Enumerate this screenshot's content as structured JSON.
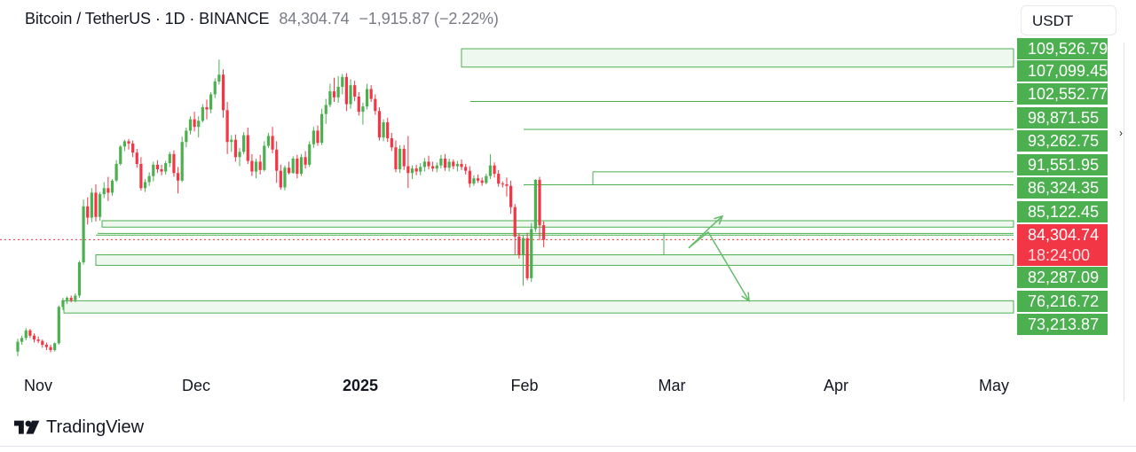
{
  "header": {
    "symbol": "Bitcoin / TetherUS · 1D · BINANCE",
    "last": "84,304.74",
    "change": "−1,915.87 (−2.22%)"
  },
  "currency_button": "USDT",
  "brand": "TradingView",
  "colors": {
    "up": "#4caf50",
    "down": "#f23645",
    "zone_fill": "#e8f5e9",
    "zone_stroke": "#4caf50",
    "arrow": "#66bb6a",
    "current_line": "#f23645"
  },
  "price_labels": {
    "p109526": "109,526.79",
    "p107099": "107,099.45",
    "p102552": "102,552.77",
    "p98871": "98,871.55",
    "p93262": "93,262.75",
    "p91551": "91,551.95",
    "p86324": "86,324.35",
    "p85122": "85,122.45",
    "current": "84,304.74",
    "countdown": "18:24:00",
    "p82287": "82,287.09",
    "p76216": "76,216.72",
    "p73213": "73,213.87"
  },
  "time_axis": {
    "nov": "Nov",
    "dec": "Dec",
    "y2025": "2025",
    "feb": "Feb",
    "mar": "Mar",
    "apr": "Apr",
    "may": "May"
  },
  "chart_data": {
    "type": "candlestick",
    "symbol": "Bitcoin / TetherUS",
    "interval": "1D",
    "exchange": "BINANCE",
    "x_labels": [
      "Nov",
      "Dec",
      "2025",
      "Feb",
      "Mar",
      "Apr",
      "May"
    ],
    "ylim": [
      70000,
      112000
    ],
    "current_price": 84304.74,
    "candles_ohlc": [
      [
        69500,
        71200,
        68900,
        70800
      ],
      [
        70800,
        71600,
        70400,
        71300
      ],
      [
        71300,
        72600,
        71000,
        72300
      ],
      [
        72300,
        72500,
        71300,
        71600
      ],
      [
        71600,
        71900,
        70700,
        71100
      ],
      [
        71100,
        71500,
        70600,
        70900
      ],
      [
        70900,
        71100,
        70000,
        70400
      ],
      [
        70400,
        70700,
        69700,
        70100
      ],
      [
        70100,
        70400,
        69400,
        69700
      ],
      [
        69700,
        70700,
        69500,
        70600
      ],
      [
        70600,
        75600,
        70400,
        75400
      ],
      [
        75400,
        76600,
        75000,
        76300
      ],
      [
        76300,
        76800,
        75800,
        76600
      ],
      [
        76600,
        76900,
        76000,
        76300
      ],
      [
        76300,
        77200,
        76000,
        76900
      ],
      [
        76900,
        81500,
        76600,
        81300
      ],
      [
        81300,
        89600,
        81000,
        88700
      ],
      [
        88700,
        89900,
        86300,
        87200
      ],
      [
        87200,
        91100,
        86600,
        90500
      ],
      [
        90500,
        91600,
        86700,
        87300
      ],
      [
        87300,
        90600,
        86800,
        90300
      ],
      [
        90300,
        91900,
        89800,
        91100
      ],
      [
        91100,
        92600,
        89400,
        90500
      ],
      [
        90500,
        92300,
        90100,
        92100
      ],
      [
        92100,
        94800,
        91900,
        94300
      ],
      [
        94300,
        96800,
        94100,
        96600
      ],
      [
        96600,
        97500,
        96000,
        97300
      ],
      [
        97300,
        97600,
        96200,
        97000
      ],
      [
        97000,
        97400,
        95200,
        95800
      ],
      [
        95800,
        96300,
        93800,
        94300
      ],
      [
        94300,
        95200,
        90800,
        91100
      ],
      [
        91100,
        92300,
        90600,
        91900
      ],
      [
        91900,
        93200,
        91400,
        92700
      ],
      [
        92700,
        94600,
        92000,
        94200
      ],
      [
        94200,
        94800,
        93100,
        93600
      ],
      [
        93600,
        94200,
        92800,
        93300
      ],
      [
        93300,
        94700,
        92900,
        94400
      ],
      [
        94400,
        95900,
        93900,
        95600
      ],
      [
        95600,
        96100,
        92600,
        93100
      ],
      [
        93100,
        93900,
        90400,
        92100
      ],
      [
        92100,
        97900,
        91900,
        97200
      ],
      [
        97200,
        99100,
        96500,
        98700
      ],
      [
        98700,
        100600,
        98200,
        100200
      ],
      [
        100200,
        101200,
        98600,
        99200
      ],
      [
        99200,
        100600,
        97800,
        100000
      ],
      [
        100000,
        102200,
        99800,
        101800
      ],
      [
        101800,
        102800,
        100200,
        101500
      ],
      [
        101500,
        103800,
        101000,
        103500
      ],
      [
        103500,
        105600,
        103000,
        105200
      ],
      [
        105200,
        108100,
        104800,
        106100
      ],
      [
        106100,
        106800,
        100400,
        101400
      ],
      [
        101400,
        102500,
        95600,
        97200
      ],
      [
        97200,
        98100,
        95900,
        97500
      ],
      [
        97500,
        98200,
        94600,
        95200
      ],
      [
        95200,
        96400,
        94000,
        95900
      ],
      [
        95900,
        98500,
        95600,
        98100
      ],
      [
        98100,
        99100,
        94300,
        94700
      ],
      [
        94700,
        95600,
        92700,
        93300
      ],
      [
        93300,
        95000,
        92400,
        94600
      ],
      [
        94600,
        95500,
        92900,
        93500
      ],
      [
        93500,
        97300,
        93300,
        96700
      ],
      [
        96700,
        98400,
        96400,
        98000
      ],
      [
        98000,
        99200,
        95700,
        96200
      ],
      [
        96200,
        97300,
        91800,
        93400
      ],
      [
        93400,
        94200,
        90900,
        91200
      ],
      [
        91200,
        94100,
        90800,
        93800
      ],
      [
        93800,
        94600,
        92900,
        93100
      ],
      [
        93100,
        95300,
        93000,
        95000
      ],
      [
        95000,
        95500,
        92400,
        93000
      ],
      [
        93000,
        95600,
        92700,
        95200
      ],
      [
        95200,
        96000,
        93700,
        94200
      ],
      [
        94200,
        97300,
        93900,
        96900
      ],
      [
        96900,
        99200,
        96400,
        98700
      ],
      [
        98700,
        99400,
        96700,
        97100
      ],
      [
        97100,
        101600,
        96800,
        100900
      ],
      [
        100900,
        102900,
        99600,
        102100
      ],
      [
        102100,
        104900,
        101800,
        103900
      ],
      [
        103900,
        105700,
        102500,
        103100
      ],
      [
        103100,
        105900,
        102400,
        104500
      ],
      [
        104500,
        106200,
        103500,
        105800
      ],
      [
        105800,
        106300,
        101300,
        102200
      ],
      [
        102200,
        105500,
        101600,
        104700
      ],
      [
        104700,
        105300,
        102600,
        103200
      ],
      [
        103200,
        103800,
        100700,
        101200
      ],
      [
        101200,
        102400,
        99500,
        101900
      ],
      [
        101900,
        104900,
        101500,
        104200
      ],
      [
        104200,
        104700,
        102500,
        102900
      ],
      [
        102900,
        103500,
        100800,
        101300
      ],
      [
        101300,
        101800,
        97400,
        97800
      ],
      [
        97800,
        100200,
        97300,
        99800
      ],
      [
        99800,
        100400,
        97200,
        97700
      ],
      [
        97700,
        98400,
        96000,
        96500
      ],
      [
        96500,
        97400,
        93200,
        93600
      ],
      [
        93600,
        96800,
        93100,
        96300
      ],
      [
        96300,
        96800,
        93500,
        94000
      ],
      [
        94000,
        98000,
        91100,
        93100
      ],
      [
        93100,
        94100,
        92300,
        93700
      ],
      [
        93700,
        94200,
        92800,
        93300
      ],
      [
        93300,
        94400,
        92800,
        93900
      ],
      [
        93900,
        95100,
        93300,
        94600
      ],
      [
        94600,
        95400,
        93600,
        94000
      ],
      [
        94000,
        94600,
        93300,
        93700
      ],
      [
        93700,
        94500,
        93200,
        94100
      ],
      [
        94100,
        95500,
        93700,
        95000
      ],
      [
        95000,
        95600,
        93400,
        93800
      ],
      [
        93800,
        95000,
        93300,
        94600
      ],
      [
        94600,
        94900,
        93600,
        94000
      ],
      [
        94000,
        94700,
        93300,
        94300
      ],
      [
        94300,
        94900,
        93500,
        93900
      ],
      [
        93900,
        94300,
        92900,
        93400
      ],
      [
        93400,
        94000,
        91200,
        91700
      ],
      [
        91700,
        92800,
        91400,
        92400
      ],
      [
        92400,
        92900,
        91800,
        92100
      ],
      [
        92100,
        92500,
        91400,
        91800
      ],
      [
        91800,
        93000,
        91600,
        92700
      ],
      [
        92700,
        95600,
        92300,
        94100
      ],
      [
        94100,
        94500,
        92500,
        93000
      ],
      [
        93000,
        93500,
        91300,
        91700
      ],
      [
        91700,
        92000,
        91200,
        91600
      ],
      [
        91600,
        92500,
        90000,
        91400
      ],
      [
        91400,
        92100,
        87700,
        88600
      ],
      [
        88600,
        89000,
        82300,
        84700
      ],
      [
        84700,
        85100,
        81800,
        82300
      ],
      [
        82300,
        84900,
        78200,
        84500
      ],
      [
        84500,
        85200,
        78900,
        79200
      ],
      [
        79200,
        86500,
        78700,
        85700
      ],
      [
        85700,
        92300,
        85300,
        92200
      ],
      [
        92200,
        92600,
        84200,
        86200
      ],
      [
        86200,
        86700,
        83300,
        84304
      ]
    ],
    "zones": [
      {
        "top": 109526.79,
        "bottom": 107099.45
      },
      {
        "top": 86800,
        "bottom": 85950
      },
      {
        "top": 82287.09,
        "bottom": 80900
      },
      {
        "top": 76216.72,
        "bottom": 74600
      }
    ],
    "levels": [
      102552.77,
      98871.55,
      93262.75,
      91551.95,
      85122.45,
      84900,
      82287.09
    ],
    "projection_up": [
      [
        83200,
        0
      ],
      [
        87200,
        1
      ],
      [
        86324.35,
        2
      ]
    ],
    "projection_down": [
      [
        84304.74,
        0
      ],
      [
        80500,
        1
      ],
      [
        76216.72,
        2
      ]
    ]
  }
}
